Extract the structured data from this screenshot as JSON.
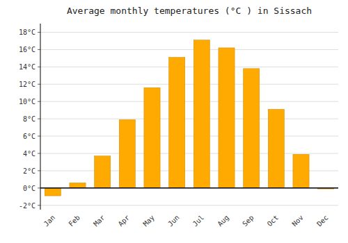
{
  "chart_data": {
    "type": "bar",
    "title": "Average monthly temperatures (°C ) in Sissach",
    "categories": [
      "Jan",
      "Feb",
      "Mar",
      "Apr",
      "May",
      "Jun",
      "Jul",
      "Aug",
      "Sep",
      "Oct",
      "Nov",
      "Dec"
    ],
    "values": [
      -0.9,
      0.6,
      3.7,
      7.9,
      11.6,
      15.1,
      17.1,
      16.2,
      13.8,
      9.1,
      3.9,
      -0.1
    ],
    "color": "#FFAA00",
    "ylim": [
      -2.5,
      19
    ],
    "yticks": [
      {
        "value": -2,
        "label": "-2°C"
      },
      {
        "value": 0,
        "label": "0°C"
      },
      {
        "value": 2,
        "label": "2°C"
      },
      {
        "value": 4,
        "label": "4°C"
      },
      {
        "value": 6,
        "label": "6°C"
      },
      {
        "value": 8,
        "label": "8°C"
      },
      {
        "value": 10,
        "label": "10°C"
      },
      {
        "value": 12,
        "label": "12°C"
      },
      {
        "value": 14,
        "label": "14°C"
      },
      {
        "value": 16,
        "label": "16°C"
      },
      {
        "value": 18,
        "label": "18°C"
      }
    ],
    "grid": true
  }
}
